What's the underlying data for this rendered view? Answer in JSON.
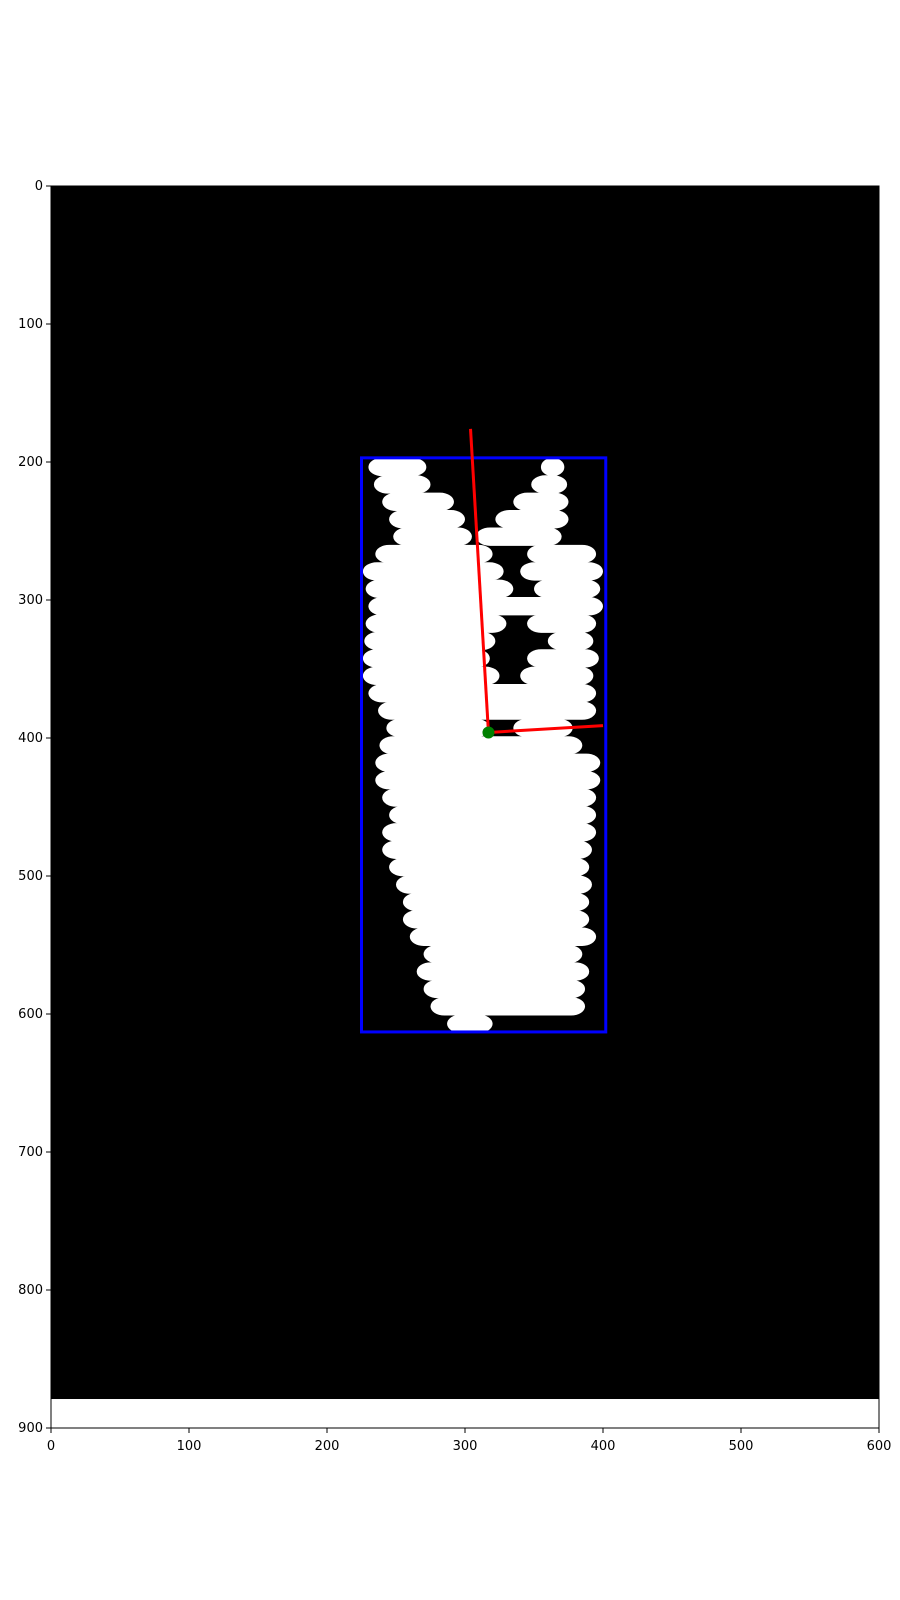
{
  "chart_data": {
    "type": "scatter",
    "title": "",
    "xlabel": "",
    "ylabel": "",
    "xlim": [
      0,
      600
    ],
    "ylim": [
      900,
      0
    ],
    "x_ticks": [
      0,
      100,
      200,
      300,
      400,
      500,
      600
    ],
    "y_ticks": [
      0,
      100,
      200,
      300,
      400,
      500,
      600,
      700,
      800,
      900
    ],
    "grid": false,
    "legend": "none",
    "image": {
      "description_colors": {
        "background": "#000000",
        "foreground": "#ffffff"
      },
      "extent_rows": [
        0,
        879
      ]
    },
    "bounding_box": {
      "x_min": 225,
      "x_max": 402,
      "y_min": 197,
      "y_max": 613,
      "color": "#0000ff"
    },
    "centroid": {
      "x": 317,
      "y": 396,
      "color": "#008000"
    },
    "axes_lines": [
      {
        "name": "major-axis",
        "from": [
          317,
          396
        ],
        "to": [
          304,
          176
        ],
        "color": "#ff0000"
      },
      {
        "name": "minor-axis",
        "from": [
          317,
          396
        ],
        "to": [
          400,
          391
        ],
        "color": "#ff0000"
      }
    ],
    "blob_rows": [
      [
        [
          230,
          272
        ],
        [
          355,
          372
        ]
      ],
      [
        [
          234,
          275
        ],
        [
          348,
          374
        ]
      ],
      [
        [
          240,
          292
        ],
        [
          335,
          375
        ]
      ],
      [
        [
          245,
          300
        ],
        [
          322,
          375
        ]
      ],
      [
        [
          248,
          305
        ],
        [
          308,
          370
        ]
      ],
      [
        [
          235,
          320
        ],
        [
          345,
          395
        ]
      ],
      [
        [
          226,
          328
        ],
        [
          340,
          400
        ]
      ],
      [
        [
          228,
          335
        ],
        [
          350,
          398
        ]
      ],
      [
        [
          230,
          400
        ]
      ],
      [
        [
          228,
          330
        ],
        [
          345,
          395
        ]
      ],
      [
        [
          227,
          322
        ],
        [
          360,
          393
        ]
      ],
      [
        [
          226,
          318
        ],
        [
          345,
          397
        ]
      ],
      [
        [
          226,
          325
        ],
        [
          340,
          393
        ]
      ],
      [
        [
          230,
          395
        ]
      ],
      [
        [
          237,
          395
        ]
      ],
      [
        [
          243,
          318
        ],
        [
          335,
          378
        ]
      ],
      [
        [
          238,
          385
        ]
      ],
      [
        [
          235,
          398
        ]
      ],
      [
        [
          235,
          398
        ]
      ],
      [
        [
          240,
          395
        ]
      ],
      [
        [
          245,
          395
        ]
      ],
      [
        [
          240,
          395
        ]
      ],
      [
        [
          240,
          392
        ]
      ],
      [
        [
          245,
          390
        ]
      ],
      [
        [
          250,
          392
        ]
      ],
      [
        [
          255,
          390
        ]
      ],
      [
        [
          255,
          390
        ]
      ],
      [
        [
          260,
          395
        ]
      ],
      [
        [
          270,
          385
        ]
      ],
      [
        [
          265,
          390
        ]
      ],
      [
        [
          270,
          387
        ]
      ],
      [
        [
          275,
          387
        ]
      ],
      [
        [
          287,
          320
        ]
      ]
    ]
  }
}
